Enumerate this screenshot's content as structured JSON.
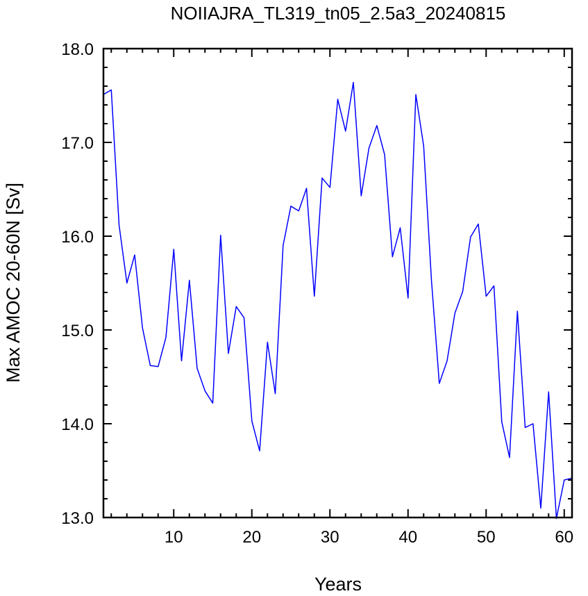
{
  "chart_data": {
    "type": "line",
    "title": "NOIIAJRA_TL319_tn05_2.5a3_20240815",
    "xlabel": "Years",
    "ylabel": "Max AMOC 20-60N [Sv]",
    "xlim": [
      1,
      61
    ],
    "ylim": [
      13.0,
      18.0
    ],
    "x_ticks": [
      10,
      20,
      30,
      40,
      50,
      60
    ],
    "y_ticks": [
      "13.0",
      "14.0",
      "15.0",
      "16.0",
      "17.0",
      "18.0"
    ],
    "grid": false,
    "line_color": "#0000ff",
    "series": [
      {
        "x": [
          1,
          2,
          3,
          4,
          5,
          6,
          7,
          8,
          9,
          10,
          11,
          12,
          13,
          14,
          15,
          16,
          17,
          18,
          19,
          20,
          21,
          22,
          23,
          24,
          25,
          26,
          27,
          28,
          29,
          30,
          31,
          32,
          33,
          34,
          35,
          36,
          37,
          38,
          39,
          40,
          41,
          42,
          43,
          44,
          45,
          46,
          47,
          48,
          49,
          50,
          51,
          52,
          53,
          54,
          55,
          56,
          57,
          58,
          59,
          60,
          61
        ],
        "values": [
          17.51,
          17.56,
          16.12,
          15.5,
          15.8,
          15.02,
          14.62,
          14.61,
          14.92,
          15.86,
          14.67,
          15.53,
          14.59,
          14.35,
          14.22,
          16.01,
          14.75,
          15.25,
          15.13,
          14.03,
          13.71,
          14.87,
          14.32,
          15.9,
          16.32,
          16.27,
          16.51,
          15.36,
          16.62,
          16.52,
          17.46,
          17.12,
          17.64,
          16.43,
          16.94,
          17.18,
          16.87,
          15.78,
          16.09,
          15.34,
          17.51,
          16.96,
          15.53,
          14.43,
          14.67,
          15.18,
          15.41,
          15.99,
          16.13,
          15.36,
          15.47,
          14.02,
          13.64,
          15.2,
          13.96,
          14.0,
          13.1,
          14.34,
          12.99,
          13.4,
          13.42
        ]
      }
    ]
  }
}
